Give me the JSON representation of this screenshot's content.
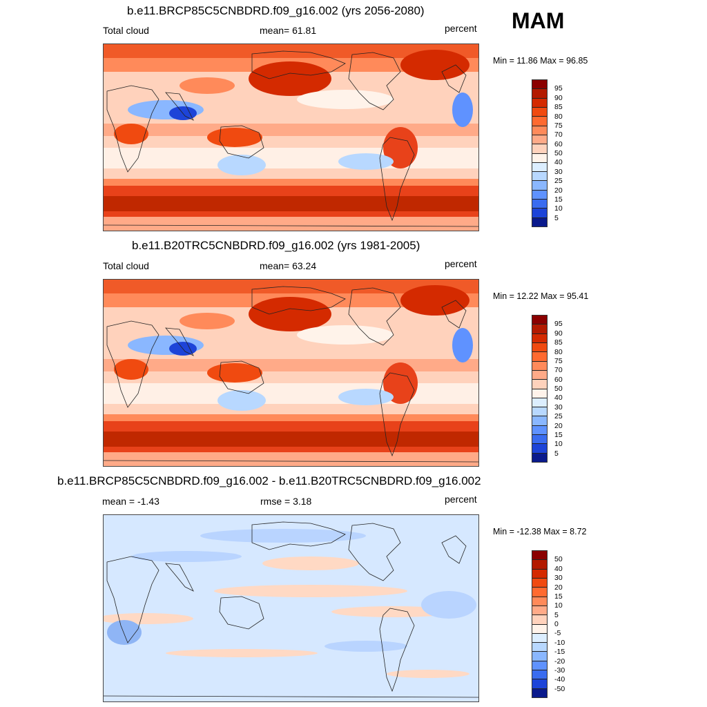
{
  "season": "MAM",
  "panels": [
    {
      "title": "b.e11.BRCP85C5CNBDRD.f09_g16.002 (yrs 2056-2080)",
      "left_label": "Total cloud",
      "center_label": "mean=  61.81",
      "right_label": "percent",
      "minmax": "Min =  11.86 Max =  96.85",
      "variant": "abs"
    },
    {
      "title": "b.e11.B20TRC5CNBDRD.f09_g16.002 (yrs 1981-2005)",
      "left_label": "Total cloud",
      "center_label": "mean=  63.24",
      "right_label": "percent",
      "minmax": "Min =  12.22 Max =  95.41",
      "variant": "abs"
    },
    {
      "title": "b.e11.BRCP85C5CNBDRD.f09_g16.002 - b.e11.B20TRC5CNBDRD.f09_g16.002",
      "left_label": "mean =  -1.43",
      "center_label": "rmse =   3.18",
      "right_label": "percent",
      "minmax": "Min = -12.38 Max =   8.72",
      "variant": "diff"
    }
  ],
  "colorbar_abs": {
    "labels": [
      "95",
      "90",
      "85",
      "80",
      "75",
      "70",
      "60",
      "50",
      "40",
      "30",
      "25",
      "20",
      "15",
      "10",
      "5"
    ],
    "colors": [
      "#8b0000",
      "#b31a00",
      "#d42a00",
      "#f04a10",
      "#ff6a30",
      "#ff8a5a",
      "#ffaa88",
      "#ffd2bc",
      "#fff3ea",
      "#dceeff",
      "#b8d8ff",
      "#8ab7ff",
      "#5f92ff",
      "#3a6cf0",
      "#1d44d8",
      "#0a1a8c"
    ]
  },
  "colorbar_diff": {
    "labels": [
      "50",
      "40",
      "30",
      "20",
      "15",
      "10",
      "5",
      "0",
      "-5",
      "-10",
      "-15",
      "-20",
      "-30",
      "-40",
      "-50"
    ],
    "colors": [
      "#8b0000",
      "#b31a00",
      "#d42a00",
      "#f04a10",
      "#ff6a30",
      "#ff8a5a",
      "#ffaa88",
      "#ffd2bc",
      "#fff3ea",
      "#dceeff",
      "#b8d8ff",
      "#8ab7ff",
      "#5f92ff",
      "#3a6cf0",
      "#1d44d8",
      "#0a1a8c"
    ]
  }
}
